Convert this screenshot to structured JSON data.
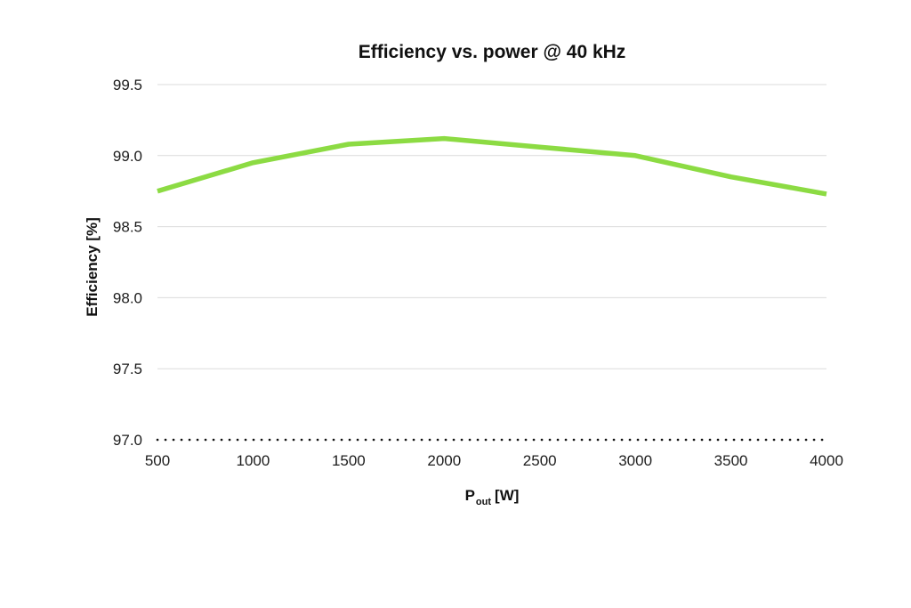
{
  "figure": {
    "background_color": "#ffffff"
  },
  "chart_data": {
    "type": "line",
    "title": "Efficiency vs. power @ 40 kHz",
    "xlabel": "P_out [W]",
    "xlabel_main": "P",
    "xlabel_sub": "out",
    "xlabel_unit": "[W]",
    "ylabel": "Efficiency [%]",
    "x": [
      500,
      1000,
      1500,
      2000,
      2500,
      3000,
      3500,
      4000
    ],
    "series": [
      {
        "name": "Efficiency @ 40 kHz",
        "color": "#8cdb43",
        "values": [
          98.75,
          98.95,
          99.08,
          99.12,
          99.06,
          99.0,
          98.85,
          98.73
        ]
      }
    ],
    "xlim": [
      500,
      4000
    ],
    "ylim": [
      97.0,
      99.5
    ],
    "xticks": [
      500,
      1000,
      1500,
      2000,
      2500,
      3000,
      3500,
      4000
    ],
    "xtick_labels": [
      "500",
      "1000",
      "1500",
      "2000",
      "2500",
      "3000",
      "3500",
      "4000"
    ],
    "yticks": [
      97.0,
      97.5,
      98.0,
      98.5,
      99.0,
      99.5
    ],
    "ytick_labels": [
      "97.0",
      "97.5",
      "98.0",
      "98.5",
      "99.0",
      "99.5"
    ],
    "grid": true,
    "legend_position": "none",
    "colors": {
      "line": "#8cdb43",
      "gridline": "#dbdbdb",
      "baseline_dotted": "#111111",
      "tick_text": "#1c1c1c"
    }
  }
}
